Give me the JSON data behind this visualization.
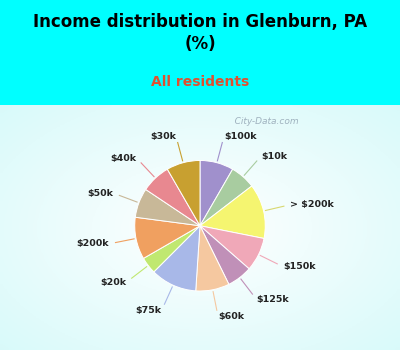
{
  "title": "Income distribution in Glenburn, PA\n(%)",
  "subtitle": "All residents",
  "title_color": "#000000",
  "subtitle_color": "#e05030",
  "bg_top": "#00ffff",
  "watermark": "   City-Data.com",
  "labels": [
    "$100k",
    "$10k",
    "> $200k",
    "$150k",
    "$125k",
    "$60k",
    "$75k",
    "$20k",
    "$200k",
    "$50k",
    "$40k",
    "$30k"
  ],
  "values": [
    8,
    6,
    13,
    8,
    6,
    8,
    11,
    4,
    10,
    7,
    7,
    8
  ],
  "colors": [
    "#a090cc",
    "#a8cca0",
    "#f5f570",
    "#f0a8b8",
    "#c090b8",
    "#f5c8a0",
    "#a8b8e8",
    "#c0e870",
    "#f0a060",
    "#c8b898",
    "#e88890",
    "#c8a030"
  ],
  "line_colors": [
    "#a090cc",
    "#a8cca0",
    "#d8d870",
    "#f0a8b8",
    "#c090b8",
    "#f5c8a0",
    "#a8b8e8",
    "#c0e870",
    "#f0a060",
    "#c8b898",
    "#e88890",
    "#c8a030"
  ]
}
